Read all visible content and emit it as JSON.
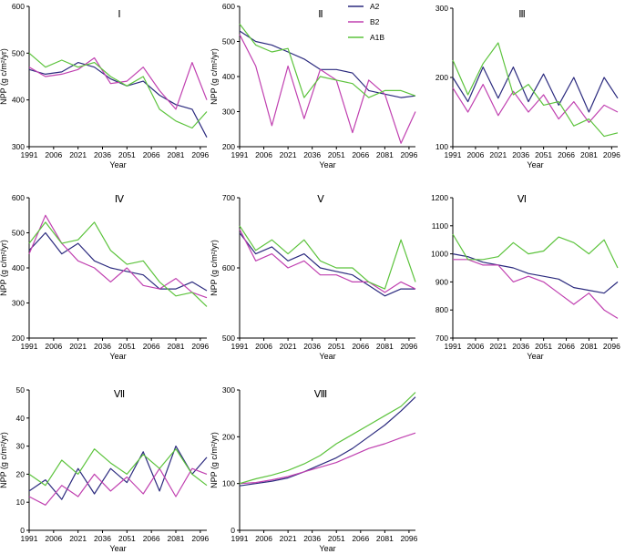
{
  "colors": {
    "A2": "#2b2a7e",
    "B2": "#c040b0",
    "A1B": "#5cc33c",
    "axis": "#000000"
  },
  "legend": [
    "A2",
    "B2",
    "A1B"
  ],
  "chart_data": [
    {
      "type": "line",
      "title": "Ⅰ",
      "xlabel": "Year",
      "ylabel": "NPP (g c/m²/yr)",
      "ylim": [
        300,
        600
      ],
      "yticks": [
        "300",
        "400",
        "500",
        "600"
      ],
      "xlim": [
        1991,
        2100
      ],
      "xticks": [
        "1991",
        "2006",
        "2021",
        "2036",
        "2051",
        "2066",
        "2081",
        "2096"
      ],
      "x": [
        1991,
        2001,
        2011,
        2021,
        2031,
        2041,
        2051,
        2061,
        2071,
        2081,
        2091,
        2100
      ],
      "series": [
        {
          "name": "A2",
          "values": [
            465,
            455,
            460,
            480,
            470,
            445,
            430,
            440,
            410,
            390,
            380,
            320
          ]
        },
        {
          "name": "B2",
          "values": [
            470,
            450,
            455,
            465,
            490,
            435,
            440,
            470,
            420,
            380,
            480,
            400
          ]
        },
        {
          "name": "A1B",
          "values": [
            500,
            470,
            485,
            470,
            480,
            450,
            430,
            450,
            380,
            355,
            340,
            375
          ]
        }
      ]
    },
    {
      "type": "line",
      "title": "Ⅱ",
      "xlabel": "Year",
      "ylabel": "NPP (g c/m²/yr)",
      "ylim": [
        200,
        600
      ],
      "yticks": [
        "200",
        "300",
        "400",
        "500",
        "600"
      ],
      "xlim": [
        1991,
        2100
      ],
      "xticks": [
        "1991",
        "2006",
        "2021",
        "2036",
        "2051",
        "2066",
        "2081",
        "2096"
      ],
      "x": [
        1991,
        2001,
        2011,
        2021,
        2031,
        2041,
        2051,
        2061,
        2071,
        2081,
        2091,
        2100
      ],
      "series": [
        {
          "name": "A2",
          "values": [
            530,
            500,
            490,
            470,
            450,
            420,
            420,
            410,
            360,
            350,
            340,
            345
          ]
        },
        {
          "name": "B2",
          "values": [
            520,
            430,
            260,
            430,
            280,
            420,
            390,
            240,
            390,
            350,
            210,
            300
          ]
        },
        {
          "name": "A1B",
          "values": [
            550,
            490,
            470,
            480,
            340,
            400,
            390,
            380,
            340,
            360,
            360,
            345
          ]
        }
      ]
    },
    {
      "type": "line",
      "title": "Ⅲ",
      "xlabel": "Year",
      "ylabel": "",
      "ylim": [
        100,
        300
      ],
      "yticks": [
        "100",
        "200",
        "300"
      ],
      "xlim": [
        1991,
        2100
      ],
      "xticks": [
        "1991",
        "2006",
        "2021",
        "2036",
        "2051",
        "2066",
        "2081",
        "2096"
      ],
      "x": [
        1991,
        2001,
        2011,
        2021,
        2031,
        2041,
        2051,
        2061,
        2071,
        2081,
        2091,
        2100
      ],
      "series": [
        {
          "name": "A2",
          "values": [
            200,
            165,
            215,
            170,
            215,
            165,
            205,
            160,
            200,
            150,
            200,
            170
          ]
        },
        {
          "name": "B2",
          "values": [
            185,
            150,
            190,
            145,
            180,
            150,
            175,
            140,
            165,
            135,
            160,
            150
          ]
        },
        {
          "name": "A1B",
          "values": [
            225,
            175,
            220,
            250,
            175,
            190,
            160,
            165,
            130,
            140,
            115,
            120
          ]
        }
      ]
    },
    {
      "type": "line",
      "title": "Ⅳ",
      "xlabel": "Year",
      "ylabel": "NPP (g c/m²/yr)",
      "ylim": [
        200,
        600
      ],
      "yticks": [
        "200",
        "300",
        "400",
        "500",
        "600"
      ],
      "xlim": [
        1991,
        2100
      ],
      "xticks": [
        "1991",
        "2006",
        "2021",
        "2036",
        "2051",
        "2066",
        "2081",
        "2096"
      ],
      "x": [
        1991,
        2001,
        2011,
        2021,
        2031,
        2041,
        2051,
        2061,
        2071,
        2081,
        2091,
        2100
      ],
      "series": [
        {
          "name": "A2",
          "values": [
            450,
            500,
            440,
            470,
            420,
            400,
            390,
            380,
            340,
            340,
            360,
            335
          ]
        },
        {
          "name": "B2",
          "values": [
            440,
            550,
            470,
            420,
            400,
            360,
            400,
            350,
            340,
            370,
            330,
            315
          ]
        },
        {
          "name": "A1B",
          "values": [
            470,
            530,
            470,
            480,
            530,
            450,
            410,
            420,
            360,
            320,
            330,
            290
          ]
        }
      ]
    },
    {
      "type": "line",
      "title": "Ⅴ",
      "xlabel": "Year",
      "ylabel": "NPP (g c/m²/yr)",
      "ylim": [
        500,
        700
      ],
      "yticks": [
        "500",
        "600",
        "700"
      ],
      "xlim": [
        1991,
        2100
      ],
      "xticks": [
        "1991",
        "2006",
        "2021",
        "2036",
        "2051",
        "2066",
        "2081",
        "2096"
      ],
      "x": [
        1991,
        2001,
        2011,
        2021,
        2031,
        2041,
        2051,
        2061,
        2071,
        2081,
        2091,
        2100
      ],
      "series": [
        {
          "name": "A2",
          "values": [
            650,
            620,
            630,
            610,
            620,
            600,
            595,
            590,
            575,
            560,
            570,
            570
          ]
        },
        {
          "name": "B2",
          "values": [
            655,
            610,
            620,
            600,
            610,
            590,
            590,
            580,
            580,
            565,
            580,
            570
          ]
        },
        {
          "name": "A1B",
          "values": [
            660,
            625,
            640,
            620,
            640,
            610,
            600,
            600,
            580,
            570,
            640,
            580
          ]
        }
      ]
    },
    {
      "type": "line",
      "title": "Ⅵ",
      "xlabel": "Year",
      "ylabel": "",
      "ylim": [
        700,
        1200
      ],
      "yticks": [
        "700",
        "800",
        "900",
        "1000",
        "1100",
        "1200"
      ],
      "xlim": [
        1991,
        2100
      ],
      "xticks": [
        "1991",
        "2006",
        "2021",
        "2036",
        "2051",
        "2066",
        "2081",
        "2096"
      ],
      "x": [
        1991,
        2001,
        2011,
        2021,
        2031,
        2041,
        2051,
        2061,
        2071,
        2081,
        2091,
        2100
      ],
      "series": [
        {
          "name": "A2",
          "values": [
            1000,
            990,
            970,
            960,
            950,
            930,
            920,
            910,
            880,
            870,
            860,
            900
          ]
        },
        {
          "name": "B2",
          "values": [
            980,
            980,
            960,
            960,
            900,
            920,
            900,
            860,
            820,
            860,
            800,
            770
          ]
        },
        {
          "name": "A1B",
          "values": [
            1070,
            980,
            980,
            990,
            1040,
            1000,
            1010,
            1060,
            1040,
            1000,
            1050,
            950
          ]
        }
      ]
    },
    {
      "type": "line",
      "title": "Ⅶ",
      "xlabel": "Year",
      "ylabel": "NPP (g c/m²/yr)",
      "ylim": [
        0,
        50
      ],
      "yticks": [
        "0",
        "10",
        "20",
        "30",
        "40",
        "50"
      ],
      "xlim": [
        1991,
        2100
      ],
      "xticks": [
        "1991",
        "2006",
        "2021",
        "2036",
        "2051",
        "2066",
        "2081",
        "2096"
      ],
      "x": [
        1991,
        2001,
        2011,
        2021,
        2031,
        2041,
        2051,
        2061,
        2071,
        2081,
        2091,
        2100
      ],
      "series": [
        {
          "name": "A2",
          "values": [
            14,
            18,
            11,
            22,
            13,
            22,
            17,
            28,
            14,
            30,
            20,
            26
          ]
        },
        {
          "name": "B2",
          "values": [
            12,
            9,
            16,
            12,
            20,
            14,
            19,
            13,
            22,
            12,
            22,
            20
          ]
        },
        {
          "name": "A1B",
          "values": [
            20,
            16,
            25,
            20,
            29,
            24,
            20,
            27,
            22,
            29,
            20,
            16
          ]
        }
      ]
    },
    {
      "type": "line",
      "title": "Ⅷ",
      "xlabel": "Year",
      "ylabel": "NPP (g c/m²/yr)",
      "ylim": [
        0,
        300
      ],
      "yticks": [
        "0",
        "100",
        "200",
        "300"
      ],
      "xlim": [
        1991,
        2100
      ],
      "xticks": [
        "1991",
        "2006",
        "2021",
        "2036",
        "2051",
        "2066",
        "2081",
        "2096"
      ],
      "x": [
        1991,
        2001,
        2011,
        2021,
        2031,
        2041,
        2051,
        2061,
        2071,
        2081,
        2091,
        2100
      ],
      "series": [
        {
          "name": "A2",
          "values": [
            95,
            100,
            105,
            112,
            125,
            140,
            155,
            175,
            200,
            225,
            255,
            285
          ]
        },
        {
          "name": "B2",
          "values": [
            100,
            102,
            108,
            115,
            125,
            135,
            145,
            160,
            175,
            185,
            198,
            208
          ]
        },
        {
          "name": "A1B",
          "values": [
            100,
            110,
            118,
            128,
            142,
            160,
            185,
            205,
            225,
            245,
            265,
            295
          ]
        }
      ]
    }
  ]
}
